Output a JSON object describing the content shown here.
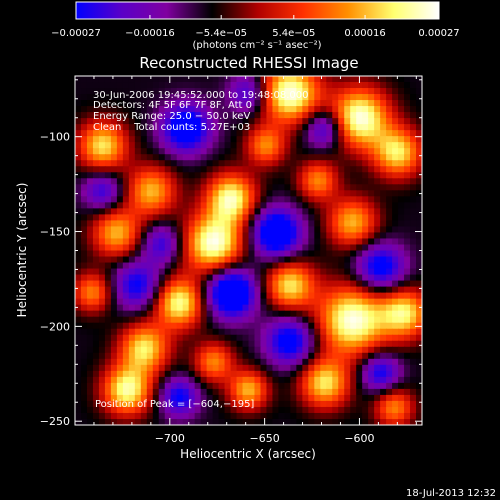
{
  "chart_data": {
    "type": "heatmap",
    "title": "Reconstructed RHESSI Image",
    "xlabel": "Heliocentric X (arcsec)",
    "ylabel": "Heliocentric Y (arcsec)",
    "xlim": [
      -750,
      -567
    ],
    "ylim": [
      -252,
      -68
    ],
    "x_ticks": [
      -700,
      -650,
      -600
    ],
    "x_tick_labels": [
      "−700",
      "−650",
      "−600"
    ],
    "y_ticks": [
      -100,
      -150,
      -200,
      -250
    ],
    "y_tick_labels": [
      "−100",
      "−150",
      "−200",
      "−250"
    ],
    "colorbar": {
      "ticks": [
        -0.00027,
        -0.00016,
        -5.4e-05,
        5.4e-05,
        0.00016,
        0.00027
      ],
      "tick_labels": [
        "−0.00027",
        "−0.00016",
        "−5.4e−05",
        "5.4e−05",
        "0.00016",
        "0.00027"
      ],
      "unit_label": "(photons cm⁻² s⁻¹ asec⁻²)",
      "colors": [
        "#0000ff",
        "#5a00c8",
        "#8000a0",
        "#000000",
        "#b00000",
        "#ff3000",
        "#ff9000",
        "#ffff70",
        "#ffffff"
      ]
    },
    "annotations": [
      "30-Jun-2006 19:45:52.000 to 19:48:08.000",
      "Detectors: 4F 5F 6F 7F 8F, Att 0",
      "Energy Range: 25.0 − 50.0 keV",
      "Clean    Total counts: 5.27E+03",
      "Position of Peak = [−604,−195]"
    ],
    "peak_position": [
      -604,
      -195
    ],
    "timestamp": "18-Jul-2013 12:32",
    "grid": false
  }
}
